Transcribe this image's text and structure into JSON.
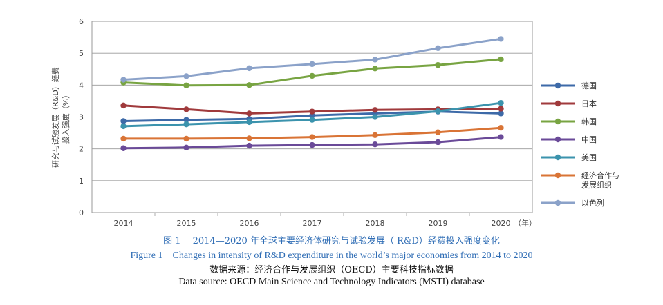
{
  "chart_data": {
    "type": "line",
    "categories": [
      "2014",
      "2015",
      "2016",
      "2017",
      "2018",
      "2019",
      "2020"
    ],
    "x_unit": "（年）",
    "ylabel_line1": "研究与试验发展（R&D）经费",
    "ylabel_line2": "投入强度（%）",
    "ylim": [
      0,
      6
    ],
    "yticks": [
      "0",
      "1",
      "2",
      "3",
      "4",
      "5",
      "6"
    ],
    "grid": true,
    "legend_position": "right",
    "series": [
      {
        "name": "德国",
        "color": "#3d6aa8",
        "values": [
          2.87,
          2.91,
          2.94,
          3.05,
          3.11,
          3.17,
          3.11
        ]
      },
      {
        "name": "日本",
        "color": "#a03a3c",
        "values": [
          3.36,
          3.24,
          3.11,
          3.17,
          3.22,
          3.24,
          3.26
        ]
      },
      {
        "name": "韩国",
        "color": "#78a442",
        "values": [
          4.08,
          3.99,
          4.0,
          4.29,
          4.52,
          4.63,
          4.81
        ]
      },
      {
        "name": "中国",
        "color": "#6a4a98",
        "values": [
          2.02,
          2.04,
          2.1,
          2.12,
          2.14,
          2.21,
          2.37
        ]
      },
      {
        "name": "美国",
        "color": "#3b93ad",
        "values": [
          2.71,
          2.77,
          2.84,
          2.91,
          3.0,
          3.18,
          3.44
        ]
      },
      {
        "name": "经济合作与发展组织",
        "color": "#d97436",
        "values": [
          2.32,
          2.32,
          2.33,
          2.37,
          2.43,
          2.52,
          2.66
        ]
      },
      {
        "name": "以色列",
        "color": "#8ba2c9",
        "values": [
          4.17,
          4.28,
          4.53,
          4.66,
          4.8,
          5.16,
          5.45
        ]
      }
    ]
  },
  "captions": {
    "figure_cn": "图 1　 2014—2020 年全球主要经济体研究与试验发展（ R&D）经费投入强度变化",
    "figure_en": "Figure 1　Changes in intensity of R&D expenditure in the world’s major economies  from 2014 to 2020",
    "source_cn": "数据来源：经济合作与发展组织（OECD）主要科技指标数据",
    "source_en": "Data source: OECD Main Science and Technology Indicators (MSTI) database"
  }
}
